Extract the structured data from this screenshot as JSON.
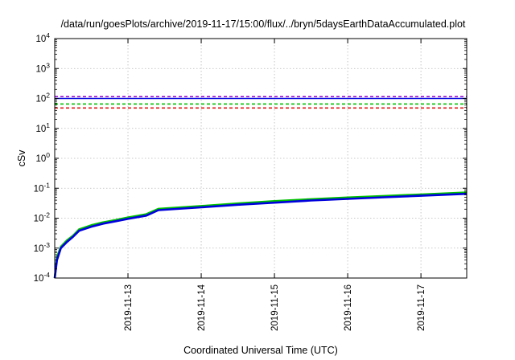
{
  "chart_data": {
    "type": "line",
    "title": "/data/run/goesPlots/archive/2019-11-17/15:00/flux/../bryn/5daysEarthDataAccumulated.plot",
    "xlabel": "Coordinated Universal Time (UTC)",
    "ylabel": "cSv",
    "yscale": "log",
    "ylim": [
      0.0001,
      10000
    ],
    "xlim": [
      "2019-11-12T00:00",
      "2019-11-17T15:00"
    ],
    "x_ticks": [
      "2019-11-13",
      "2019-11-14",
      "2019-11-15",
      "2019-11-16",
      "2019-11-17"
    ],
    "y_ticks": [
      {
        "value": 0.0001,
        "base": "10",
        "exp": "-4"
      },
      {
        "value": 0.001,
        "base": "10",
        "exp": "-3"
      },
      {
        "value": 0.01,
        "base": "10",
        "exp": "-2"
      },
      {
        "value": 0.1,
        "base": "10",
        "exp": "-1"
      },
      {
        "value": 1,
        "base": "10",
        "exp": "0"
      },
      {
        "value": 10,
        "base": "10",
        "exp": "1"
      },
      {
        "value": 100,
        "base": "10",
        "exp": "2"
      },
      {
        "value": 1000,
        "base": "10",
        "exp": "3"
      },
      {
        "value": 10000,
        "base": "10",
        "exp": "4"
      }
    ],
    "grid": true,
    "legend": "none",
    "series": [
      {
        "color": "#00c000",
        "x": [
          "2019-11-12T00:00",
          "2019-11-12T00:45",
          "2019-11-12T02:00",
          "2019-11-12T04:00",
          "2019-11-12T06:00",
          "2019-11-12T08:00",
          "2019-11-12T12:00",
          "2019-11-12T16:00",
          "2019-11-12T20:00",
          "2019-11-13T00:00",
          "2019-11-13T06:00",
          "2019-11-13T10:00",
          "2019-11-14T00:00",
          "2019-11-14T12:00",
          "2019-11-15T00:00",
          "2019-11-15T12:00",
          "2019-11-16T00:00",
          "2019-11-16T12:00",
          "2019-11-17T00:00",
          "2019-11-17T15:00"
        ],
        "y": [
          0.0001,
          0.0005,
          0.0011,
          0.0018,
          0.0026,
          0.0042,
          0.0058,
          0.0073,
          0.0087,
          0.0106,
          0.0135,
          0.0205,
          0.0255,
          0.031,
          0.037,
          0.043,
          0.049,
          0.055,
          0.062,
          0.072
        ]
      },
      {
        "color": "#0000dd",
        "x": [
          "2019-11-12T00:00",
          "2019-11-12T00:45",
          "2019-11-12T02:00",
          "2019-11-12T04:00",
          "2019-11-12T06:00",
          "2019-11-12T08:00",
          "2019-11-12T12:00",
          "2019-11-12T16:00",
          "2019-11-12T20:00",
          "2019-11-13T00:00",
          "2019-11-13T06:00",
          "2019-11-13T10:00",
          "2019-11-14T00:00",
          "2019-11-14T12:00",
          "2019-11-15T00:00",
          "2019-11-15T12:00",
          "2019-11-16T00:00",
          "2019-11-16T12:00",
          "2019-11-17T00:00",
          "2019-11-17T15:00"
        ],
        "y": [
          0.0001,
          0.0004,
          0.001,
          0.0016,
          0.0024,
          0.0038,
          0.0052,
          0.0066,
          0.0079,
          0.0095,
          0.0122,
          0.0185,
          0.023,
          0.028,
          0.033,
          0.039,
          0.044,
          0.05,
          0.056,
          0.065
        ]
      }
    ],
    "reference_lines": [
      {
        "value": 115,
        "color": "#9400d3",
        "style": "dashed"
      },
      {
        "value": 100,
        "color": "#0000dd",
        "style": "solid"
      },
      {
        "value": 65,
        "color": "#00c000",
        "style": "dashed"
      },
      {
        "value": 48,
        "color": "#e00000",
        "style": "dashed"
      }
    ]
  }
}
